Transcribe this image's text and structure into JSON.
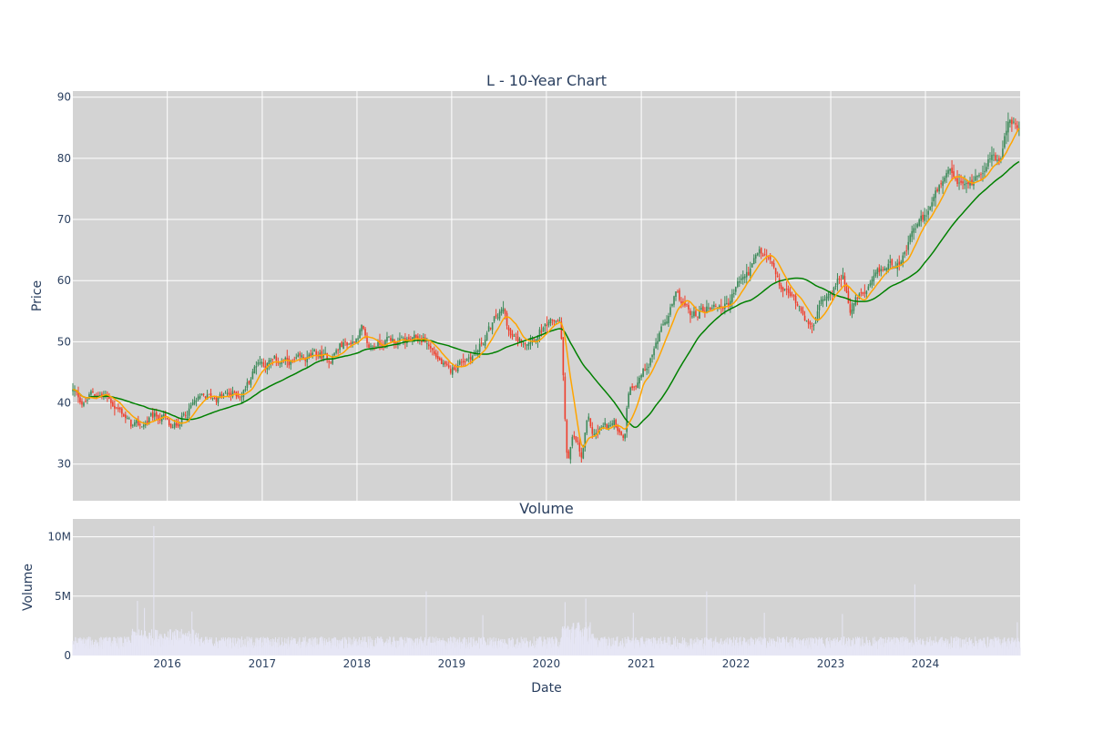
{
  "chart_data": [
    {
      "type": "candlestick",
      "title": "L - 10-Year Chart",
      "ylabel": "Price",
      "ylim": [
        24,
        91
      ],
      "y_ticks": [
        30,
        40,
        50,
        60,
        70,
        80,
        90
      ],
      "xlim": [
        "2015-01-02",
        "2024-12-31"
      ],
      "grid": true,
      "plot_background": "#d3d3d3",
      "colors": {
        "up": "#3d8a5a",
        "down": "#ef3e2c",
        "ma_short": "#ffa500",
        "ma_long": "#008000"
      },
      "price_keypoints": [
        [
          "2015-01-02",
          42
        ],
        [
          "2015-02-15",
          39.8
        ],
        [
          "2015-03-15",
          41.5
        ],
        [
          "2015-05-01",
          41.2
        ],
        [
          "2015-06-15",
          39.5
        ],
        [
          "2015-07-15",
          38.3
        ],
        [
          "2015-08-15",
          36.2
        ],
        [
          "2015-09-15",
          36.0
        ],
        [
          "2015-11-01",
          37.5
        ],
        [
          "2015-12-15",
          37.8
        ],
        [
          "2016-01-20",
          35.3
        ],
        [
          "2016-03-01",
          38.0
        ],
        [
          "2016-04-15",
          40.0
        ],
        [
          "2016-06-01",
          40.8
        ],
        [
          "2016-07-15",
          41.0
        ],
        [
          "2016-09-01",
          41.3
        ],
        [
          "2016-10-15",
          41.5
        ],
        [
          "2016-11-15",
          44.0
        ],
        [
          "2016-12-15",
          47.0
        ],
        [
          "2017-01-15",
          46.5
        ],
        [
          "2017-03-01",
          46.8
        ],
        [
          "2017-05-01",
          46.5
        ],
        [
          "2017-06-15",
          47.0
        ],
        [
          "2017-08-01",
          47.8
        ],
        [
          "2017-09-15",
          47.2
        ],
        [
          "2017-11-01",
          49.5
        ],
        [
          "2017-12-15",
          50.0
        ],
        [
          "2018-01-20",
          52.5
        ],
        [
          "2018-02-10",
          48.5
        ],
        [
          "2018-03-15",
          49.5
        ],
        [
          "2018-05-01",
          50.5
        ],
        [
          "2018-06-15",
          50.0
        ],
        [
          "2018-08-01",
          50.0
        ],
        [
          "2018-09-15",
          50.5
        ],
        [
          "2018-10-10",
          49.0
        ],
        [
          "2018-11-15",
          47.0
        ],
        [
          "2018-12-24",
          44.5
        ],
        [
          "2019-01-15",
          46.0
        ],
        [
          "2019-03-01",
          47.5
        ],
        [
          "2019-04-15",
          48.8
        ],
        [
          "2019-05-15",
          51.0
        ],
        [
          "2019-06-15",
          53.5
        ],
        [
          "2019-07-20",
          55.0
        ],
        [
          "2019-08-15",
          51.0
        ],
        [
          "2019-09-15",
          50.0
        ],
        [
          "2019-10-15",
          50.5
        ],
        [
          "2019-12-01",
          51.5
        ],
        [
          "2020-01-15",
          52.5
        ],
        [
          "2020-02-20",
          54.0
        ],
        [
          "2020-03-01",
          49.0
        ],
        [
          "2020-03-15",
          36.0
        ],
        [
          "2020-03-23",
          30.0
        ],
        [
          "2020-04-10",
          34.0
        ],
        [
          "2020-05-01",
          33.0
        ],
        [
          "2020-05-15",
          30.5
        ],
        [
          "2020-06-08",
          37.0
        ],
        [
          "2020-07-01",
          34.5
        ],
        [
          "2020-08-01",
          36.0
        ],
        [
          "2020-09-15",
          36.5
        ],
        [
          "2020-10-30",
          35.0
        ],
        [
          "2020-11-10",
          42.0
        ],
        [
          "2020-12-15",
          44.0
        ],
        [
          "2021-01-15",
          45.5
        ],
        [
          "2021-03-01",
          50.0
        ],
        [
          "2021-04-15",
          54.0
        ],
        [
          "2021-05-15",
          57.5
        ],
        [
          "2021-06-15",
          56.0
        ],
        [
          "2021-07-15",
          54.0
        ],
        [
          "2021-09-01",
          55.5
        ],
        [
          "2021-10-15",
          56.0
        ],
        [
          "2021-11-30",
          56.0
        ],
        [
          "2022-01-15",
          60.0
        ],
        [
          "2022-02-15",
          61.0
        ],
        [
          "2022-04-01",
          64.5
        ],
        [
          "2022-05-15",
          63.0
        ],
        [
          "2022-06-15",
          59.0
        ],
        [
          "2022-08-01",
          57.5
        ],
        [
          "2022-09-15",
          55.5
        ],
        [
          "2022-10-15",
          52.0
        ],
        [
          "2022-11-30",
          57.0
        ],
        [
          "2023-01-15",
          59.0
        ],
        [
          "2023-02-20",
          61.0
        ],
        [
          "2023-03-15",
          55.5
        ],
        [
          "2023-04-15",
          57.0
        ],
        [
          "2023-06-01",
          58.5
        ],
        [
          "2023-07-15",
          61.5
        ],
        [
          "2023-09-01",
          63.0
        ],
        [
          "2023-10-15",
          64.0
        ],
        [
          "2023-11-15",
          68.0
        ],
        [
          "2023-12-31",
          70.5
        ],
        [
          "2024-02-15",
          74.5
        ],
        [
          "2024-04-01",
          77.0
        ],
        [
          "2024-05-15",
          75.5
        ],
        [
          "2024-07-01",
          76.0
        ],
        [
          "2024-08-15",
          79.0
        ],
        [
          "2024-09-15",
          80.5
        ],
        [
          "2024-10-15",
          79.5
        ],
        [
          "2024-11-15",
          86.0
        ],
        [
          "2024-12-31",
          84.5
        ]
      ]
    },
    {
      "type": "bar",
      "title": "Volume",
      "xlabel": "Date",
      "ylabel": "Volume",
      "ylim": [
        0,
        11500000
      ],
      "y_ticks": [
        0,
        5000000,
        10000000
      ],
      "y_tick_labels": [
        "0",
        "5M",
        "10M"
      ],
      "x_ticks": [
        "2016-01-01",
        "2017-01-01",
        "2018-01-01",
        "2019-01-01",
        "2020-01-01",
        "2021-01-01",
        "2022-01-01",
        "2023-01-01",
        "2024-01-01"
      ],
      "x_tick_labels": [
        "2016",
        "2017",
        "2018",
        "2019",
        "2020",
        "2021",
        "2022",
        "2023",
        "2024"
      ],
      "grid": true,
      "bar_color": "#e6e6f5",
      "volume_baseline": 1000000,
      "volume_spikes": [
        [
          "2015-11-10",
          10900000
        ],
        [
          "2015-09-08",
          4600000
        ],
        [
          "2015-10-05",
          4000000
        ],
        [
          "2016-04-05",
          3700000
        ],
        [
          "2018-09-25",
          5400000
        ],
        [
          "2019-05-01",
          3400000
        ],
        [
          "2020-03-13",
          4500000
        ],
        [
          "2020-06-01",
          4800000
        ],
        [
          "2020-12-01",
          3600000
        ],
        [
          "2021-09-10",
          5400000
        ],
        [
          "2022-04-20",
          3600000
        ],
        [
          "2023-02-15",
          3500000
        ],
        [
          "2023-11-21",
          6000000
        ],
        [
          "2024-12-20",
          2800000
        ]
      ]
    }
  ]
}
